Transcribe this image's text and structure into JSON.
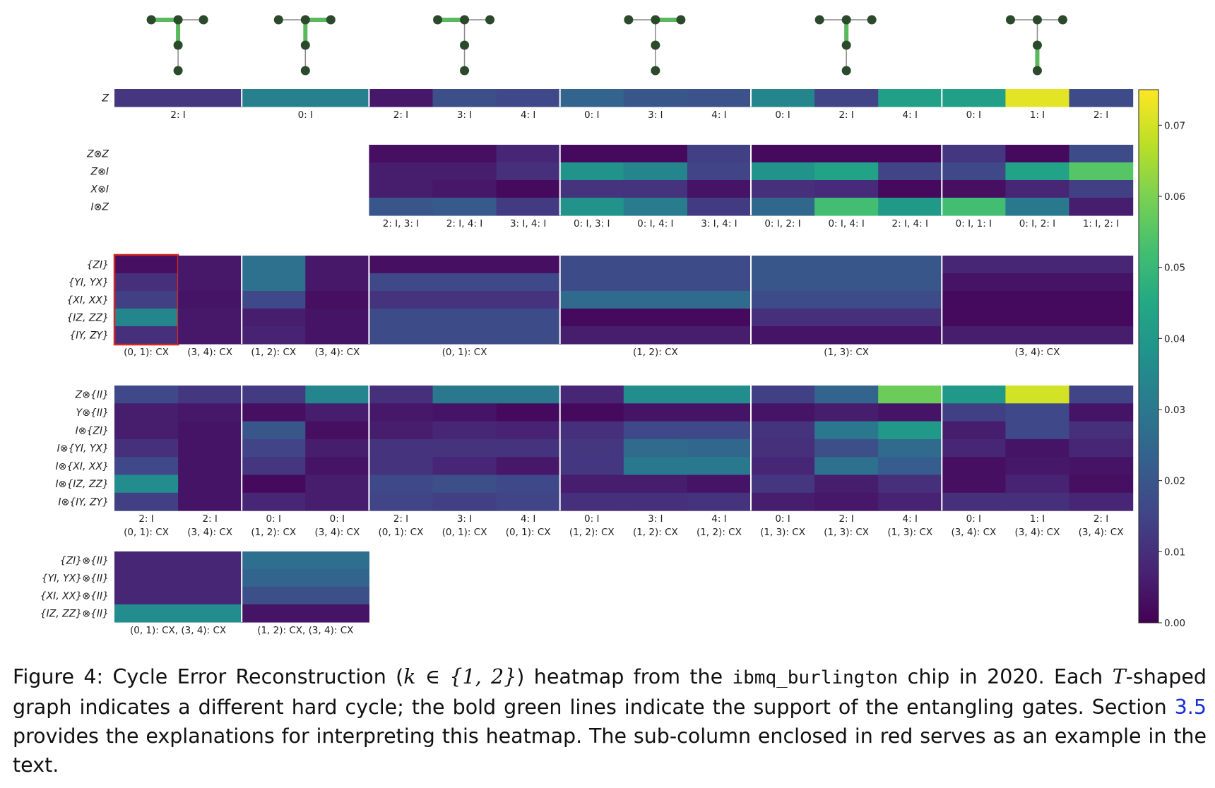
{
  "chart_data": {
    "type": "heatmap",
    "colormap": "viridis",
    "colorbar": {
      "min": 0.0,
      "max": 0.075,
      "ticks": [
        "0.00",
        "0.01",
        "0.02",
        "0.03",
        "0.04",
        "0.05",
        "0.06",
        "0.07"
      ]
    },
    "cycles": [
      {
        "id": 1,
        "bold_edges": [
          "0-1",
          "1-3"
        ]
      },
      {
        "id": 2,
        "bold_edges": [
          "1-2",
          "1-3"
        ]
      },
      {
        "id": 3,
        "bold_edges": [
          "0-1"
        ]
      },
      {
        "id": 4,
        "bold_edges": [
          "1-2"
        ]
      },
      {
        "id": 5,
        "bold_edges": [
          "1-3"
        ]
      },
      {
        "id": 6,
        "bold_edges": [
          "3-4"
        ]
      }
    ],
    "panels": [
      {
        "name": "single-qubit",
        "row_labels": [
          "Z"
        ],
        "columns": [
          {
            "cycle": 1,
            "label": "2: I",
            "values": [
              0.012
            ]
          },
          {
            "cycle": 2,
            "label": "0: I",
            "values": [
              0.032
            ]
          },
          {
            "cycle": 3,
            "label": "2: I",
            "values": [
              0.005
            ]
          },
          {
            "cycle": 3,
            "label": "3: I",
            "values": [
              0.018
            ]
          },
          {
            "cycle": 3,
            "label": "4: I",
            "values": [
              0.016
            ]
          },
          {
            "cycle": 4,
            "label": "0: I",
            "values": [
              0.024
            ]
          },
          {
            "cycle": 4,
            "label": "3: I",
            "values": [
              0.02
            ]
          },
          {
            "cycle": 4,
            "label": "4: I",
            "values": [
              0.019
            ]
          },
          {
            "cycle": 5,
            "label": "0: I",
            "values": [
              0.034
            ]
          },
          {
            "cycle": 5,
            "label": "2: I",
            "values": [
              0.015
            ]
          },
          {
            "cycle": 5,
            "label": "4: I",
            "values": [
              0.042
            ]
          },
          {
            "cycle": 6,
            "label": "0: I",
            "values": [
              0.042
            ]
          },
          {
            "cycle": 6,
            "label": "1: I",
            "values": [
              0.072
            ]
          },
          {
            "cycle": 6,
            "label": "2: I",
            "values": [
              0.017
            ]
          }
        ]
      },
      {
        "name": "two-qubit-idle",
        "row_labels": [
          "Z⊗Z",
          "Z⊗I",
          "X⊗I",
          "I⊗Z"
        ],
        "columns": [
          {
            "cycle": 3,
            "label": "2: I, 3: I",
            "values": [
              0.003,
              0.006,
              0.006,
              0.02
            ]
          },
          {
            "cycle": 3,
            "label": "2: I, 4: I",
            "values": [
              0.003,
              0.006,
              0.005,
              0.021
            ]
          },
          {
            "cycle": 3,
            "label": "3: I, 4: I",
            "values": [
              0.008,
              0.01,
              0.002,
              0.013
            ]
          },
          {
            "cycle": 4,
            "label": "0: I, 3: I",
            "values": [
              0.002,
              0.038,
              0.011,
              0.038
            ]
          },
          {
            "cycle": 4,
            "label": "0: I, 4: I",
            "values": [
              0.002,
              0.034,
              0.011,
              0.031
            ]
          },
          {
            "cycle": 4,
            "label": "3: I, 4: I",
            "values": [
              0.014,
              0.015,
              0.004,
              0.013
            ]
          },
          {
            "cycle": 5,
            "label": "0: I, 2: I",
            "values": [
              0.002,
              0.038,
              0.01,
              0.025
            ]
          },
          {
            "cycle": 5,
            "label": "0: I, 4: I",
            "values": [
              0.002,
              0.043,
              0.009,
              0.052
            ]
          },
          {
            "cycle": 5,
            "label": "2: I, 4: I",
            "values": [
              0.002,
              0.015,
              0.002,
              0.04
            ]
          },
          {
            "cycle": 6,
            "label": "0: I, 1: I",
            "values": [
              0.012,
              0.016,
              0.003,
              0.052
            ]
          },
          {
            "cycle": 6,
            "label": "0: I, 2: I",
            "values": [
              0.002,
              0.043,
              0.008,
              0.03
            ]
          },
          {
            "cycle": 6,
            "label": "1: I, 2: I",
            "values": [
              0.017,
              0.055,
              0.014,
              0.006
            ]
          }
        ]
      },
      {
        "name": "gate-errors",
        "row_labels": [
          "{ZI}",
          "{YI, YX}",
          "{XI, XX}",
          "{IZ, ZZ}",
          "{IY, ZY}"
        ],
        "columns": [
          {
            "cycle": 1,
            "label": "(0, 1): CX",
            "values": [
              0.003,
              0.01,
              0.014,
              0.034,
              0.01
            ],
            "highlighted": true
          },
          {
            "cycle": 1,
            "label": "(3, 4): CX",
            "values": [
              0.005,
              0.005,
              0.004,
              0.005,
              0.005
            ]
          },
          {
            "cycle": 2,
            "label": "(1, 2): CX",
            "values": [
              0.028,
              0.028,
              0.016,
              0.006,
              0.007
            ]
          },
          {
            "cycle": 2,
            "label": "(3, 4): CX",
            "values": [
              0.005,
              0.005,
              0.003,
              0.004,
              0.004
            ]
          },
          {
            "cycle": 3,
            "label": "(0, 1): CX",
            "values": [
              0.003,
              0.016,
              0.011,
              0.017,
              0.017
            ]
          },
          {
            "cycle": 4,
            "label": "(1, 2): CX",
            "values": [
              0.017,
              0.017,
              0.026,
              0.002,
              0.006
            ]
          },
          {
            "cycle": 5,
            "label": "(1, 3): CX",
            "values": [
              0.02,
              0.02,
              0.017,
              0.01,
              0.004
            ]
          },
          {
            "cycle": 6,
            "label": "(3, 4): CX",
            "values": [
              0.008,
              0.004,
              0.002,
              0.002,
              0.006
            ]
          }
        ]
      },
      {
        "name": "gate-plus-idle",
        "row_labels": [
          "Z⊗{II}",
          "Y⊗{II}",
          "I⊗{ZI}",
          "I⊗{YI, YX}",
          "I⊗{XI, XX}",
          "I⊗{IZ, ZZ}",
          "I⊗{IY, ZY}"
        ],
        "columns": [
          {
            "cycle": 1,
            "idle": "2: I",
            "label": "(0, 1): CX",
            "values": [
              0.016,
              0.006,
              0.006,
              0.01,
              0.016,
              0.036,
              0.014
            ]
          },
          {
            "cycle": 1,
            "idle": "2: I",
            "label": "(3, 4): CX",
            "values": [
              0.012,
              0.005,
              0.004,
              0.004,
              0.004,
              0.004,
              0.004
            ]
          },
          {
            "cycle": 2,
            "idle": "0: I",
            "label": "(1, 2): CX",
            "values": [
              0.013,
              0.003,
              0.02,
              0.015,
              0.012,
              0.002,
              0.008
            ]
          },
          {
            "cycle": 2,
            "idle": "0: I",
            "label": "(3, 4): CX",
            "values": [
              0.034,
              0.006,
              0.003,
              0.006,
              0.004,
              0.006,
              0.006
            ]
          },
          {
            "cycle": 3,
            "idle": "2: I",
            "label": "(0, 1): CX",
            "values": [
              0.01,
              0.005,
              0.006,
              0.011,
              0.011,
              0.016,
              0.015
            ]
          },
          {
            "cycle": 3,
            "idle": "3: I",
            "label": "(0, 1): CX",
            "values": [
              0.03,
              0.004,
              0.008,
              0.011,
              0.008,
              0.018,
              0.014
            ]
          },
          {
            "cycle": 3,
            "idle": "4: I",
            "label": "(0, 1): CX",
            "values": [
              0.03,
              0.002,
              0.007,
              0.011,
              0.005,
              0.016,
              0.015
            ]
          },
          {
            "cycle": 4,
            "idle": "0: I",
            "label": "(1, 2): CX",
            "values": [
              0.008,
              0.002,
              0.01,
              0.012,
              0.012,
              0.006,
              0.01
            ]
          },
          {
            "cycle": 4,
            "idle": "3: I",
            "label": "(1, 2): CX",
            "values": [
              0.036,
              0.004,
              0.016,
              0.026,
              0.03,
              0.006,
              0.01
            ]
          },
          {
            "cycle": 4,
            "idle": "4: I",
            "label": "(1, 2): CX",
            "values": [
              0.036,
              0.004,
              0.016,
              0.025,
              0.03,
              0.004,
              0.011
            ]
          },
          {
            "cycle": 5,
            "idle": "0: I",
            "label": "(1, 3): CX",
            "values": [
              0.014,
              0.004,
              0.011,
              0.01,
              0.008,
              0.012,
              0.006
            ]
          },
          {
            "cycle": 5,
            "idle": "2: I",
            "label": "(1, 3): CX",
            "values": [
              0.024,
              0.006,
              0.03,
              0.018,
              0.028,
              0.006,
              0.005
            ]
          },
          {
            "cycle": 5,
            "idle": "4: I",
            "label": "(1, 3): CX",
            "values": [
              0.058,
              0.004,
              0.04,
              0.026,
              0.022,
              0.01,
              0.007
            ]
          },
          {
            "cycle": 6,
            "idle": "0: I",
            "label": "(3, 4): CX",
            "values": [
              0.04,
              0.014,
              0.006,
              0.008,
              0.003,
              0.003,
              0.01
            ]
          },
          {
            "cycle": 6,
            "idle": "1: I",
            "label": "(3, 4): CX",
            "values": [
              0.07,
              0.016,
              0.016,
              0.004,
              0.005,
              0.007,
              0.01
            ]
          },
          {
            "cycle": 6,
            "idle": "2: I",
            "label": "(3, 4): CX",
            "values": [
              0.015,
              0.004,
              0.01,
              0.008,
              0.004,
              0.003,
              0.008
            ]
          }
        ]
      },
      {
        "name": "double-gate",
        "row_labels": [
          "{ZI}⊗{II}",
          "{YI, YX}⊗{II}",
          "{XI, XX}⊗{II}",
          "{IZ, ZZ}⊗{II}"
        ],
        "columns": [
          {
            "cycle": 1,
            "label": "(0, 1): CX, (3, 4): CX",
            "values": [
              0.008,
              0.008,
              0.008,
              0.036
            ]
          },
          {
            "cycle": 2,
            "label": "(1, 2): CX, (3, 4): CX",
            "values": [
              0.027,
              0.024,
              0.018,
              0.004
            ]
          }
        ]
      }
    ]
  },
  "caption": {
    "prefix": "Figure 4:  Cycle Error Reconstruction (",
    "math_k": "k ∈ {1, 2}",
    "after_math": ") heatmap from the ",
    "chip": "ibmq_burlington",
    "mid": " chip in 2020.  Each ",
    "math_T": "T",
    "rest": "-shaped graph indicates a different hard cycle; the bold green lines indicate the support of the entangling gates.  Section ",
    "section_ref": "3.5",
    "tail": " provides the explanations for interpreting this heatmap.  The sub-column enclosed in red serves as an example in the text."
  }
}
